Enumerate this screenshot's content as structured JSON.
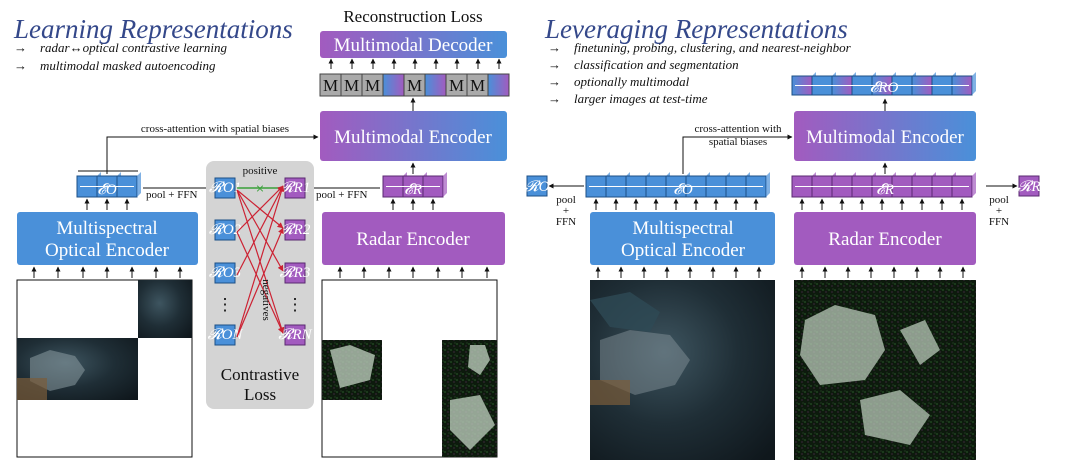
{
  "left": {
    "title": "Learning Representations",
    "bullets": [
      "radar↔optical contrastive learning",
      "multimodal masked autoencoding"
    ],
    "reconstruction_loss": "Reconstruction Loss",
    "decoder": "Multimodal Decoder",
    "mask_token": "M",
    "encoder": "Multimodal Encoder",
    "cross_attention": "cross-attention with spatial biases",
    "optical_encoder": [
      "Multispectral",
      "Optical Encoder"
    ],
    "radar_encoder": "Radar Encoder",
    "optical_tokens": "𝓔O",
    "radar_tokens": "𝓔R",
    "pool_ffn": "pool + FFN",
    "positive": "positive",
    "negatives": "negatives",
    "contrastive": [
      "Contrastive",
      "Loss"
    ],
    "rep_o": [
      "𝓡O1",
      "𝓡O2",
      "𝓡O3",
      "𝓡ON"
    ],
    "rep_r": [
      "𝓡R1",
      "𝓡R2",
      "𝓡R3",
      "𝓡RN"
    ],
    "dots": "⋮"
  },
  "right": {
    "title": "Leveraging Representations",
    "bullets": [
      "finetuning, probing, clustering, and nearest-neighbor",
      "classification and segmentation",
      "optionally multimodal",
      "larger images at test-time"
    ],
    "output_tokens": "𝓔RO",
    "encoder": "Multimodal Encoder",
    "cross_attention": [
      "cross-attention with",
      "spatial biases"
    ],
    "optical_tokens": "𝓔O",
    "radar_tokens": "𝓔R",
    "rep_o": "𝓡O",
    "rep_r": "𝓡R",
    "pool": "pool",
    "plus": "+",
    "ffn": "FFN",
    "optical_encoder": [
      "Multispectral",
      "Optical Encoder"
    ],
    "radar_encoder": "Radar Encoder"
  },
  "colors": {
    "optical": "#4a90d9",
    "radar": "#a25bbf",
    "title": "#34488a",
    "positive": "#3aa03a",
    "negative": "#cc2233",
    "contrast_panel": "#d4d4d4"
  }
}
